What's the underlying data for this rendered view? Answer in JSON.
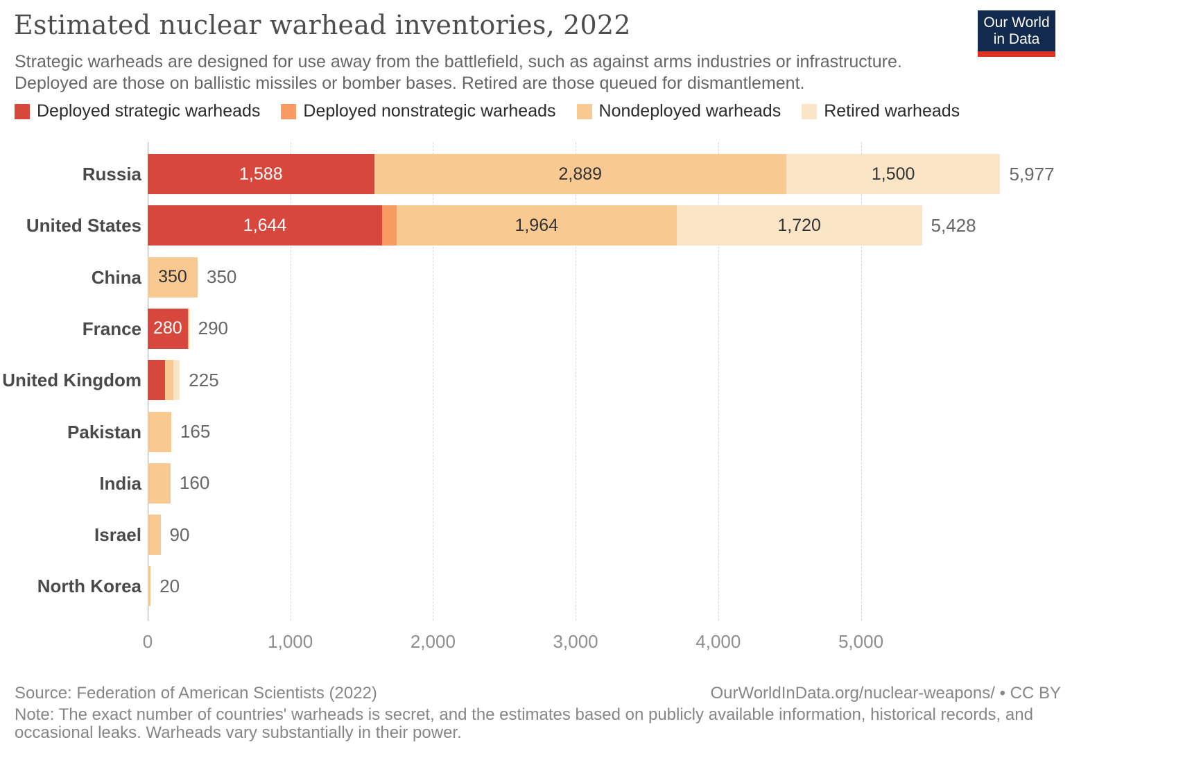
{
  "header": {
    "title": "Estimated nuclear warhead inventories, 2022",
    "subtitle_lines": [
      "Strategic warheads are designed for use away from the battlefield, such as against arms industries or infrastructure.",
      "Deployed are those on ballistic missiles or bomber bases. Retired are those queued for dismantlement."
    ],
    "logo_lines": [
      "Our World",
      "in Data"
    ],
    "logo_bg_color": "#122A4D",
    "logo_accent_color": "#DC3223"
  },
  "footer": {
    "source": "Source: Federation of American Scientists (2022)",
    "attribution": "OurWorldInData.org/nuclear-weapons/ • CC BY",
    "note_lines": [
      "Note: The exact number of countries' warheads is secret, and the estimates based on publicly available information, historical records, and",
      "occasional leaks. Warheads vary substantially in their power."
    ]
  },
  "chart_data": {
    "type": "bar",
    "orientation": "horizontal-stacked",
    "title": "Estimated nuclear warhead inventories, 2022",
    "categories": [
      "Russia",
      "United States",
      "China",
      "France",
      "United Kingdom",
      "Pakistan",
      "India",
      "Israel",
      "North Korea"
    ],
    "series": [
      {
        "name": "Deployed strategic warheads",
        "color": "#D8473B",
        "text_color": "#ffffff",
        "values": [
          1588,
          1644,
          0,
          280,
          120,
          0,
          0,
          0,
          0
        ]
      },
      {
        "name": "Deployed nonstrategic warheads",
        "color": "#F89A62",
        "text_color": "#333333",
        "values": [
          0,
          100,
          0,
          0,
          0,
          0,
          0,
          0,
          0
        ]
      },
      {
        "name": "Nondeployed warheads",
        "color": "#F8CA92",
        "text_color": "#333333",
        "values": [
          2889,
          1964,
          350,
          10,
          60,
          165,
          160,
          90,
          20
        ]
      },
      {
        "name": "Retired warheads",
        "color": "#FBE5C7",
        "text_color": "#333333",
        "values": [
          1500,
          1720,
          0,
          0,
          45,
          0,
          0,
          0,
          0
        ]
      }
    ],
    "segment_labels": [
      [
        "1,588",
        "",
        "2,889",
        "1,500"
      ],
      [
        "1,644",
        "",
        "1,964",
        "1,720"
      ],
      [
        "",
        "",
        "350",
        ""
      ],
      [
        "280",
        "",
        "",
        ""
      ],
      [
        "",
        "",
        "",
        ""
      ],
      [
        "",
        "",
        "",
        ""
      ],
      [
        "",
        "",
        "",
        ""
      ],
      [
        "",
        "",
        "",
        ""
      ],
      [
        "",
        "",
        "",
        ""
      ]
    ],
    "totals": [
      5977,
      5428,
      350,
      290,
      225,
      165,
      160,
      90,
      20
    ],
    "total_labels": [
      "5,977",
      "5,428",
      "350",
      "290",
      "225",
      "165",
      "160",
      "90",
      "20"
    ],
    "xlim": [
      0,
      6000
    ],
    "tick_values": [
      0,
      1000,
      2000,
      3000,
      4000,
      5000
    ],
    "tick_labels": [
      "0",
      "1,000",
      "2,000",
      "3,000",
      "4,000",
      "5,000"
    ],
    "grid": "dashed-vertical",
    "legend_position": "top"
  }
}
